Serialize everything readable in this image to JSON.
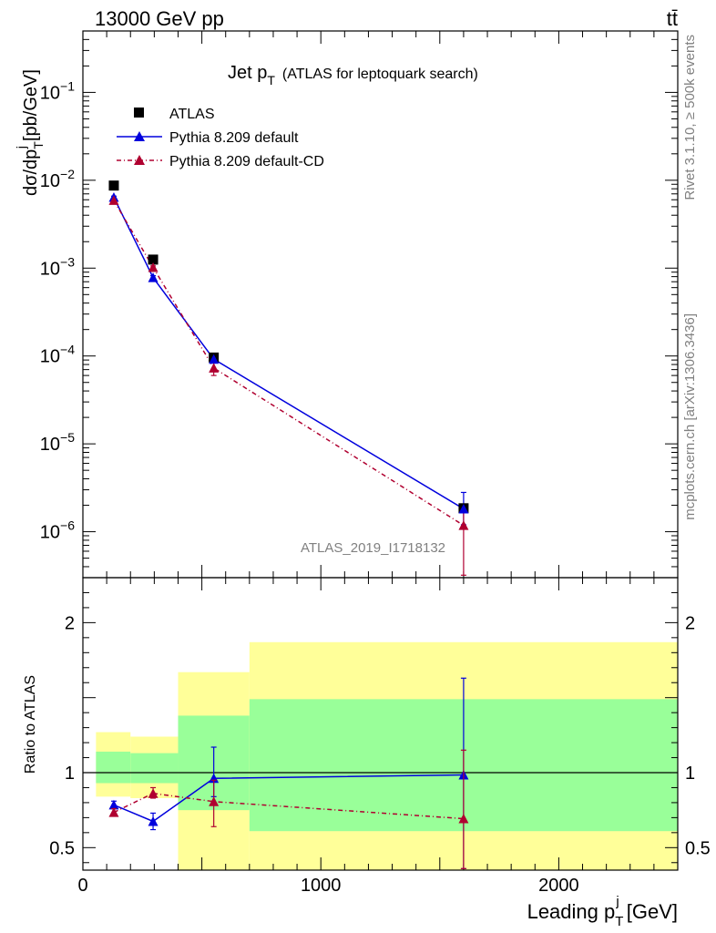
{
  "header": {
    "left": "13000 GeV pp",
    "right": "tt̄"
  },
  "side_texts": {
    "rivet": "Rivet 3.1.10, ≥ 500k events",
    "mcplots": "mcplots.cern.ch [arXiv:1306.3436]"
  },
  "watermark": "ATLAS_2019_I1718132",
  "legend": {
    "atlas": "ATLAS",
    "default": "Pythia 8.209 default",
    "cd": "Pythia 8.209 default-CD"
  },
  "colors": {
    "default": "#0000dd",
    "cd": "#b00030",
    "green": "#99ff99",
    "yellow": "#ffff99"
  },
  "chart_data": [
    {
      "type": "line",
      "title": "Jet pT (ATLAS for leptoquark search)",
      "title_main": "Jet p",
      "title_sub": "T",
      "title_rest": "(ATLAS for leptoquark search)",
      "ylabel_a": "dσ/dp",
      "ylabel_sup": "j",
      "ylabel_sub": "T",
      "ylabel_b": "[pb/GeV]",
      "yscale": "log",
      "ylim": [
        3e-07,
        0.5
      ],
      "xlim": [
        0,
        2500
      ],
      "yticks": [
        {
          "v": 1e-06,
          "base": "10",
          "exp": "−6"
        },
        {
          "v": 1e-05,
          "base": "10",
          "exp": "−5"
        },
        {
          "v": 0.0001,
          "base": "10",
          "exp": "−4"
        },
        {
          "v": 0.001,
          "base": "10",
          "exp": "−3"
        },
        {
          "v": 0.01,
          "base": "10",
          "exp": "−2"
        },
        {
          "v": 0.1,
          "base": "10",
          "exp": "−1"
        }
      ],
      "series": [
        {
          "name": "ATLAS",
          "x": [
            130,
            295,
            550,
            1600
          ],
          "y": [
            0.0087,
            0.00125,
            9.6e-05,
            1.85e-06
          ]
        },
        {
          "name": "Pythia 8.209 default",
          "x": [
            130,
            295,
            550,
            1600
          ],
          "y": [
            0.0064,
            0.00078,
            9.2e-05,
            1.82e-06
          ],
          "err_lo": [
            0.0062,
            0.00074,
            8.7e-05,
            1.2e-06
          ],
          "err_hi": [
            0.0066,
            0.00082,
            9.7e-05,
            2.8e-06
          ]
        },
        {
          "name": "Pythia 8.209 default-CD",
          "x": [
            130,
            295,
            550,
            1600
          ],
          "y": [
            0.0059,
            0.00102,
            7.3e-05,
            1.18e-06
          ],
          "err_lo": [
            0.0057,
            0.00098,
            6e-05,
            3.2e-07
          ],
          "err_hi": [
            0.0061,
            0.00106,
            8.6e-05,
            1.9e-06
          ]
        }
      ]
    },
    {
      "type": "line",
      "ylabel": "Ratio to ATLAS",
      "xlabel_a": "Leading p",
      "xlabel_sup": "j",
      "xlabel_sub": "T",
      "xlabel_b": "[GeV]",
      "xlim": [
        0,
        2500
      ],
      "ylim": [
        0.35,
        2.3
      ],
      "xticks": [
        {
          "v": 0,
          "label": "0"
        },
        {
          "v": 1000,
          "label": "1000"
        },
        {
          "v": 2000,
          "label": "2000"
        }
      ],
      "yticks": [
        {
          "v": 0.5,
          "label": "0.5"
        },
        {
          "v": 1,
          "label": "1"
        },
        {
          "v": 2,
          "label": "2"
        }
      ],
      "bands": [
        {
          "x0": 55,
          "x1": 200,
          "y_lo": 0.84,
          "y_hi": 1.27,
          "g_lo": 0.93,
          "g_hi": 1.14
        },
        {
          "x0": 200,
          "x1": 400,
          "y_lo": 0.83,
          "y_hi": 1.24,
          "g_lo": 0.93,
          "g_hi": 1.13
        },
        {
          "x0": 400,
          "x1": 700,
          "y_lo": 0.35,
          "y_hi": 1.67,
          "g_lo": 0.75,
          "g_hi": 1.38
        },
        {
          "x0": 700,
          "x1": 2500,
          "y_lo": 0.35,
          "y_hi": 1.87,
          "g_lo": 0.61,
          "g_hi": 1.49
        }
      ],
      "series": [
        {
          "name": "Pythia 8.209 default",
          "x": [
            130,
            295,
            550,
            1600
          ],
          "y": [
            0.785,
            0.675,
            0.962,
            0.985
          ],
          "err_lo": [
            0.76,
            0.62,
            0.84,
            0.36
          ],
          "err_hi": [
            0.81,
            0.73,
            1.17,
            1.63
          ]
        },
        {
          "name": "Pythia 8.209 default-CD",
          "x": [
            130,
            295,
            550,
            1600
          ],
          "y": [
            0.735,
            0.862,
            0.807,
            0.693
          ],
          "err_lo": [
            0.71,
            0.83,
            0.64,
            0.36
          ],
          "err_hi": [
            0.76,
            0.9,
            0.95,
            1.15
          ]
        }
      ]
    }
  ]
}
